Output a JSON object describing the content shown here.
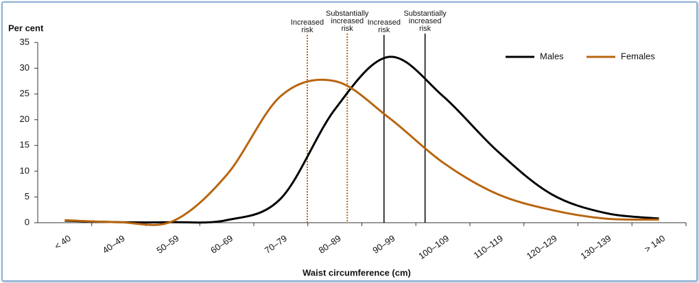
{
  "chart_data": {
    "type": "line",
    "y_label": "Per cent",
    "x_label": "Waist circumference (cm)",
    "categories": [
      "< 40",
      "40–49",
      "50–59",
      "60–69",
      "70–79",
      "80–89",
      "90–99",
      "100–109",
      "110–119",
      "120–129",
      "130–139",
      "> 140"
    ],
    "series": [
      {
        "name": "Males",
        "color": "#000000",
        "values": [
          0.4,
          0.1,
          0.1,
          0.5,
          4.7,
          22,
          32.2,
          24.6,
          14,
          5.6,
          1.9,
          0.8
        ]
      },
      {
        "name": "Females",
        "color": "#b8650f",
        "values": [
          0.5,
          0.1,
          0.3,
          9.3,
          24.6,
          27.5,
          20.4,
          11.7,
          5.6,
          2.5,
          0.8,
          0.6
        ]
      }
    ],
    "annotations": [
      {
        "label": [
          "Increased",
          "risk"
        ],
        "x": 4.49,
        "color": "#b8650f",
        "dashed": true
      },
      {
        "label": [
          "Substantially",
          "increased",
          "risk"
        ],
        "x": 5.23,
        "color": "#b8650f",
        "dashed": true
      },
      {
        "label": [
          "Increased",
          "risk"
        ],
        "x": 5.91,
        "color": "#000000",
        "dashed": false
      },
      {
        "label": [
          "Substantially",
          "increased",
          "risk"
        ],
        "x": 6.67,
        "color": "#000000",
        "dashed": false
      }
    ],
    "ylim": [
      0,
      35
    ],
    "yticks": [
      0,
      5,
      10,
      15,
      20,
      25,
      30,
      35
    ],
    "grid": false,
    "legend": "top-right"
  }
}
